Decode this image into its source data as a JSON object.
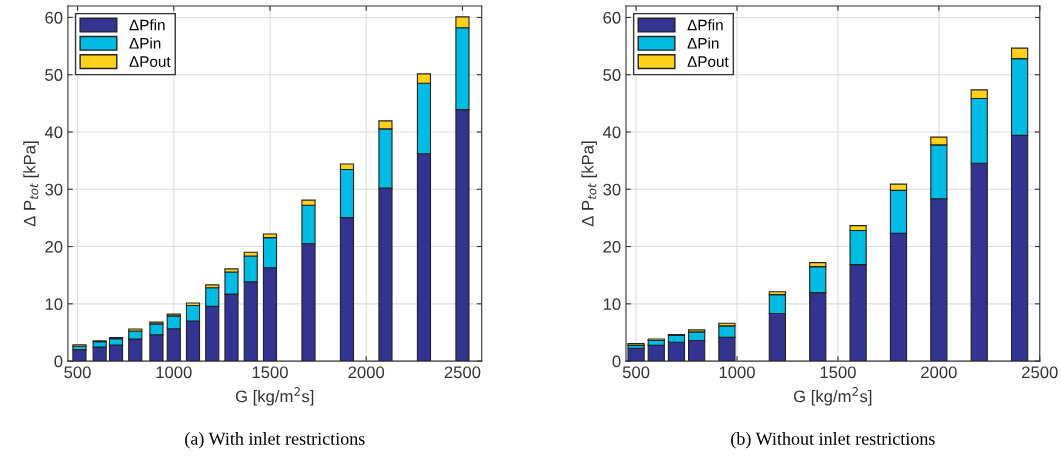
{
  "chart_data": [
    {
      "type": "bar",
      "stacked": true,
      "xlabel": "G [kg/m$^{2}$s]",
      "ylabel": "Δ P$_{tot}$ [kPa]",
      "annotations": [
        "(a) With inlet restrictions"
      ],
      "x": [
        510,
        615,
        700,
        800,
        910,
        1000,
        1100,
        1200,
        1300,
        1400,
        1500,
        1700,
        1900,
        2100,
        2300,
        2500
      ],
      "series": [
        {
          "name": "ΔPfin",
          "color": "#333391",
          "values": [
            2.0,
            2.45,
            2.8,
            3.85,
            4.6,
            5.65,
            7.0,
            9.55,
            11.7,
            13.85,
            16.3,
            20.5,
            25.05,
            30.2,
            36.2,
            43.9
          ]
        },
        {
          "name": "ΔPin",
          "color": "#00bbe4",
          "values": [
            0.6,
            0.95,
            1.1,
            1.4,
            1.9,
            2.25,
            2.7,
            3.25,
            3.85,
            4.5,
            5.25,
            6.7,
            8.4,
            10.35,
            12.3,
            14.3
          ]
        },
        {
          "name": "ΔPout",
          "color": "#ffd11a",
          "values": [
            0.25,
            0.15,
            0.2,
            0.35,
            0.3,
            0.3,
            0.45,
            0.5,
            0.55,
            0.65,
            0.65,
            0.9,
            0.95,
            1.4,
            1.65,
            1.9
          ]
        }
      ],
      "xlim": [
        450,
        2600
      ],
      "xticks": [
        500,
        1000,
        1500,
        2000,
        2500
      ],
      "ylim": [
        0,
        62
      ],
      "yticks": [
        0,
        10,
        20,
        30,
        40,
        50,
        60
      ],
      "grid": true,
      "legend": "top left"
    },
    {
      "type": "bar",
      "stacked": true,
      "xlabel": "G [kg/m$^{2}$s]",
      "ylabel": "Δ P$_{tot}$ [kPa]",
      "annotations": [
        "(b) Without inlet restrictions"
      ],
      "x": [
        500,
        600,
        700,
        800,
        950,
        1200,
        1400,
        1600,
        1800,
        2000,
        2200,
        2400
      ],
      "series": [
        {
          "name": "ΔPfin",
          "color": "#333391",
          "values": [
            2.25,
            2.75,
            3.3,
            3.6,
            4.15,
            8.3,
            11.95,
            16.85,
            22.3,
            28.35,
            34.55,
            39.4
          ]
        },
        {
          "name": "ΔPin",
          "color": "#00bbe4",
          "values": [
            0.5,
            0.85,
            1.2,
            1.5,
            2.0,
            3.3,
            4.55,
            5.95,
            7.5,
            9.4,
            11.3,
            13.4
          ]
        },
        {
          "name": "ΔPout",
          "color": "#ffd11a",
          "values": [
            0.3,
            0.25,
            0.15,
            0.35,
            0.45,
            0.5,
            0.7,
            0.85,
            1.1,
            1.35,
            1.5,
            1.85
          ]
        }
      ],
      "xlim": [
        450,
        2500
      ],
      "xticks": [
        500,
        1000,
        1500,
        2000,
        2500
      ],
      "ylim": [
        0,
        62
      ],
      "yticks": [
        0,
        10,
        20,
        30,
        40,
        50,
        60
      ],
      "grid": true,
      "legend": "top left"
    }
  ]
}
